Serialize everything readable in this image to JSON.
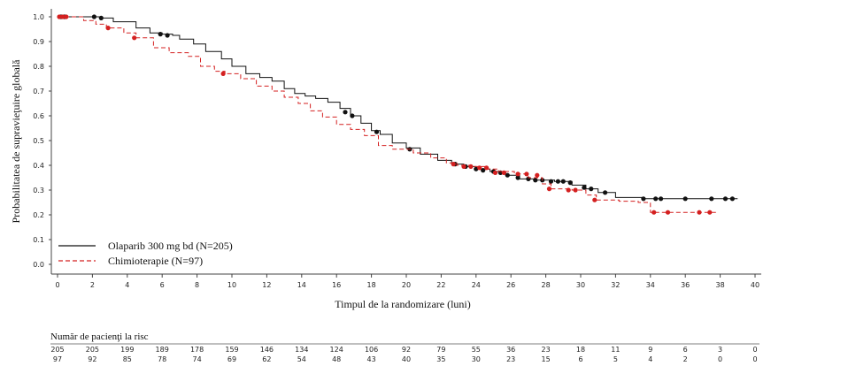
{
  "chart_data": {
    "type": "line",
    "subtype": "kaplan-meier",
    "xlabel": "Timpul de la randomizare (luni)",
    "ylabel": "Probabilitatea de supravieţuire globală",
    "xlim": [
      0,
      40
    ],
    "ylim": [
      0,
      1.0
    ],
    "xticks": [
      "0",
      "2",
      "4",
      "6",
      "8",
      "10",
      "12",
      "14",
      "16",
      "18",
      "20",
      "22",
      "24",
      "26",
      "28",
      "30",
      "32",
      "34",
      "36",
      "38",
      "40"
    ],
    "yticks": [
      "0.0",
      "0.1",
      "0.2",
      "0.3",
      "0.4",
      "0.5",
      "0.6",
      "0.7",
      "0.8",
      "0.9",
      "1.0"
    ],
    "grid": false,
    "legend_position": "bottom-left",
    "series": [
      {
        "name": "Olaparib 300 mg bd (N=205)",
        "color": "#111111",
        "dash": "solid",
        "points": [
          [
            0,
            1.0
          ],
          [
            2.5,
            0.995
          ],
          [
            3.2,
            0.98
          ],
          [
            4.5,
            0.955
          ],
          [
            5.3,
            0.935
          ],
          [
            6.0,
            0.93
          ],
          [
            6.6,
            0.925
          ],
          [
            7.0,
            0.91
          ],
          [
            7.8,
            0.89
          ],
          [
            8.5,
            0.86
          ],
          [
            9.4,
            0.83
          ],
          [
            10,
            0.8
          ],
          [
            10.8,
            0.77
          ],
          [
            11.6,
            0.755
          ],
          [
            12.3,
            0.74
          ],
          [
            13.0,
            0.71
          ],
          [
            13.6,
            0.69
          ],
          [
            14.2,
            0.68
          ],
          [
            14.8,
            0.67
          ],
          [
            15.5,
            0.655
          ],
          [
            16.2,
            0.63
          ],
          [
            16.8,
            0.6
          ],
          [
            17.4,
            0.57
          ],
          [
            18.0,
            0.54
          ],
          [
            18.5,
            0.525
          ],
          [
            19.2,
            0.49
          ],
          [
            20.0,
            0.47
          ],
          [
            20.8,
            0.445
          ],
          [
            21.8,
            0.42
          ],
          [
            22.6,
            0.405
          ],
          [
            23.3,
            0.395
          ],
          [
            24.0,
            0.385
          ],
          [
            24.8,
            0.375
          ],
          [
            25.7,
            0.36
          ],
          [
            26.5,
            0.345
          ],
          [
            27.4,
            0.34
          ],
          [
            28.5,
            0.335
          ],
          [
            29.5,
            0.32
          ],
          [
            30.3,
            0.305
          ],
          [
            31.0,
            0.29
          ],
          [
            32.0,
            0.27
          ],
          [
            33.5,
            0.265
          ],
          [
            39.0,
            0.265
          ]
        ],
        "censored": [
          [
            0.2,
            1.0
          ],
          [
            0.4,
            1.0
          ],
          [
            2.1,
            1.0
          ],
          [
            2.5,
            0.995
          ],
          [
            5.9,
            0.93
          ],
          [
            6.3,
            0.925
          ],
          [
            16.5,
            0.615
          ],
          [
            16.9,
            0.6
          ],
          [
            18.3,
            0.535
          ],
          [
            20.2,
            0.465
          ],
          [
            22.8,
            0.405
          ],
          [
            23.4,
            0.395
          ],
          [
            24.0,
            0.385
          ],
          [
            24.4,
            0.38
          ],
          [
            25.0,
            0.375
          ],
          [
            25.4,
            0.37
          ],
          [
            25.8,
            0.36
          ],
          [
            26.4,
            0.35
          ],
          [
            27.0,
            0.345
          ],
          [
            27.4,
            0.34
          ],
          [
            27.8,
            0.34
          ],
          [
            28.3,
            0.335
          ],
          [
            28.7,
            0.335
          ],
          [
            29.0,
            0.335
          ],
          [
            29.4,
            0.33
          ],
          [
            30.2,
            0.31
          ],
          [
            30.6,
            0.305
          ],
          [
            31.4,
            0.29
          ],
          [
            33.6,
            0.265
          ],
          [
            34.3,
            0.265
          ],
          [
            34.6,
            0.265
          ],
          [
            36.0,
            0.265
          ],
          [
            37.5,
            0.265
          ],
          [
            38.3,
            0.265
          ],
          [
            38.7,
            0.265
          ]
        ]
      },
      {
        "name": "Chimioterapie (N=97)",
        "color": "#d42020",
        "dash": "dashed",
        "points": [
          [
            0,
            1.0
          ],
          [
            1.5,
            0.985
          ],
          [
            2.2,
            0.97
          ],
          [
            2.8,
            0.955
          ],
          [
            3.8,
            0.935
          ],
          [
            4.5,
            0.915
          ],
          [
            5.5,
            0.875
          ],
          [
            6.4,
            0.855
          ],
          [
            7.5,
            0.84
          ],
          [
            8.2,
            0.8
          ],
          [
            9.0,
            0.78
          ],
          [
            9.6,
            0.77
          ],
          [
            10.5,
            0.75
          ],
          [
            11.4,
            0.72
          ],
          [
            12.3,
            0.7
          ],
          [
            13.0,
            0.675
          ],
          [
            13.8,
            0.65
          ],
          [
            14.5,
            0.62
          ],
          [
            15.2,
            0.595
          ],
          [
            16.0,
            0.565
          ],
          [
            16.8,
            0.545
          ],
          [
            17.6,
            0.52
          ],
          [
            18.4,
            0.48
          ],
          [
            19.2,
            0.465
          ],
          [
            20.4,
            0.45
          ],
          [
            21.4,
            0.43
          ],
          [
            22.3,
            0.41
          ],
          [
            22.9,
            0.4
          ],
          [
            23.6,
            0.395
          ],
          [
            24.5,
            0.385
          ],
          [
            25.3,
            0.375
          ],
          [
            26.2,
            0.365
          ],
          [
            27.0,
            0.35
          ],
          [
            27.8,
            0.325
          ],
          [
            28.3,
            0.305
          ],
          [
            29.5,
            0.3
          ],
          [
            30.3,
            0.28
          ],
          [
            30.9,
            0.26
          ],
          [
            32.2,
            0.255
          ],
          [
            33.3,
            0.25
          ],
          [
            34.0,
            0.21
          ],
          [
            37.8,
            0.21
          ]
        ],
        "censored": [
          [
            0.1,
            1.0
          ],
          [
            0.3,
            1.0
          ],
          [
            0.5,
            1.0
          ],
          [
            2.9,
            0.955
          ],
          [
            4.4,
            0.915
          ],
          [
            9.5,
            0.77
          ],
          [
            22.7,
            0.405
          ],
          [
            23.3,
            0.395
          ],
          [
            23.7,
            0.395
          ],
          [
            24.2,
            0.39
          ],
          [
            24.6,
            0.39
          ],
          [
            25.1,
            0.37
          ],
          [
            25.6,
            0.37
          ],
          [
            26.4,
            0.365
          ],
          [
            26.9,
            0.365
          ],
          [
            27.5,
            0.36
          ],
          [
            28.2,
            0.305
          ],
          [
            29.3,
            0.3
          ],
          [
            29.7,
            0.3
          ],
          [
            30.8,
            0.26
          ],
          [
            34.2,
            0.21
          ],
          [
            35.0,
            0.21
          ],
          [
            36.8,
            0.21
          ],
          [
            37.4,
            0.21
          ]
        ]
      }
    ]
  },
  "risk_table": {
    "title": "Număr de pacienţi la risc",
    "rows": [
      [
        "205",
        "205",
        "199",
        "189",
        "178",
        "159",
        "146",
        "134",
        "124",
        "106",
        "92",
        "79",
        "55",
        "36",
        "23",
        "18",
        "11",
        "9",
        "6",
        "3",
        "0"
      ],
      [
        "97",
        "92",
        "85",
        "78",
        "74",
        "69",
        "62",
        "54",
        "48",
        "43",
        "40",
        "35",
        "30",
        "23",
        "15",
        "6",
        "5",
        "4",
        "2",
        "0",
        "0"
      ]
    ]
  }
}
